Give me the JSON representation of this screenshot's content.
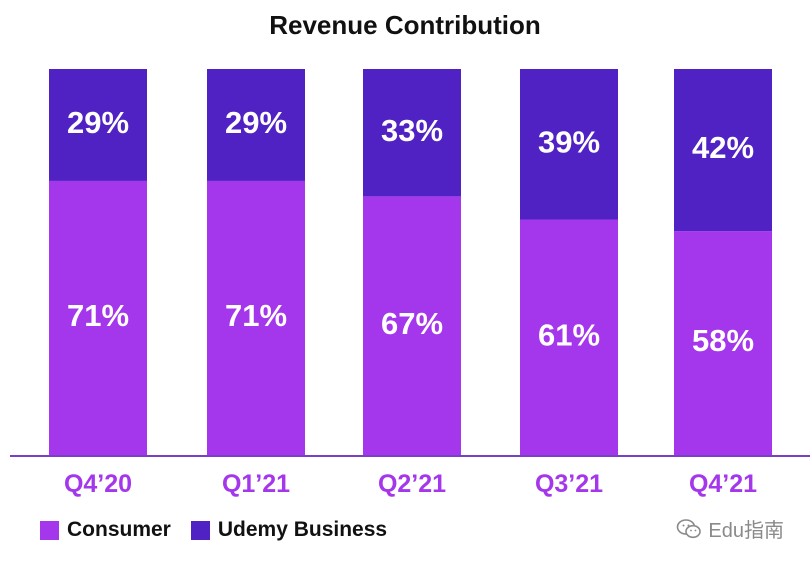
{
  "chart_data": {
    "type": "bar",
    "stacked": true,
    "title": "Revenue Contribution",
    "categories": [
      "Q4’20",
      "Q1’21",
      "Q2’21",
      "Q3’21",
      "Q4’21"
    ],
    "series": [
      {
        "name": "Consumer",
        "values": [
          71,
          71,
          67,
          61,
          58
        ],
        "labels": [
          "71%",
          "71%",
          "67%",
          "61%",
          "58%"
        ],
        "color": "#a436ec"
      },
      {
        "name": "Udemy Business",
        "values": [
          29,
          29,
          33,
          39,
          42
        ],
        "labels": [
          "29%",
          "29%",
          "33%",
          "39%",
          "42%"
        ],
        "color": "#5022c3"
      }
    ],
    "ylim": [
      0,
      100
    ],
    "category_label_color": "#a436ec",
    "baseline_color": "#7a3fc7",
    "legend_position": "bottom-left",
    "grid": false
  },
  "watermark": {
    "text": "Edu指南",
    "icon": "wechat-icon"
  }
}
